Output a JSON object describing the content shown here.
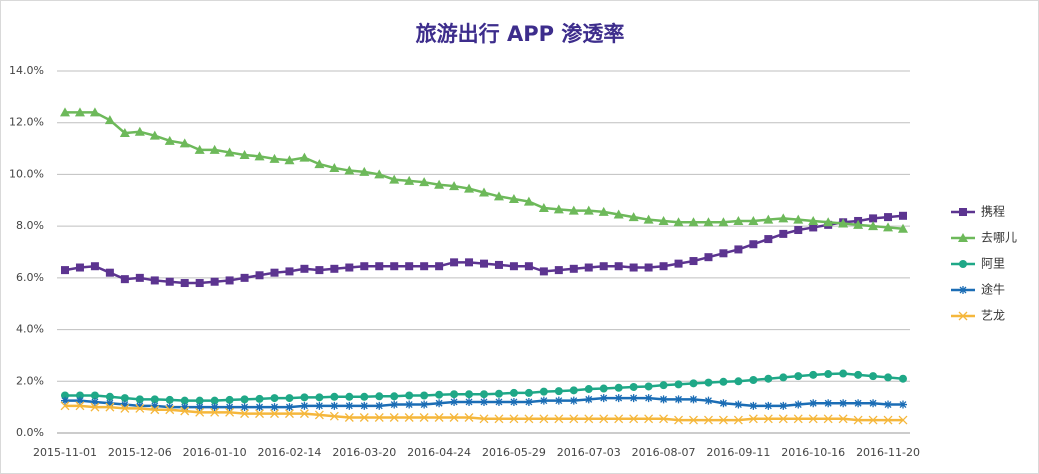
{
  "chart_data": {
    "type": "line",
    "title": "旅游出行 APP 渗透率",
    "categories": [
      "2015-11-01",
      null,
      null,
      null,
      null,
      "2015-12-06",
      null,
      null,
      null,
      null,
      "2016-01-10",
      null,
      null,
      null,
      null,
      "2016-02-14",
      null,
      null,
      null,
      null,
      "2016-03-20",
      null,
      null,
      null,
      null,
      "2016-04-24",
      null,
      null,
      null,
      null,
      "2016-05-29",
      null,
      null,
      null,
      null,
      "2016-07-03",
      null,
      null,
      null,
      null,
      "2016-08-07",
      null,
      null,
      null,
      null,
      "2016-09-11",
      null,
      null,
      null,
      null,
      "2016-10-16",
      null,
      null,
      null,
      null,
      "2016-11-20",
      null
    ],
    "ylim": [
      0,
      14
    ],
    "yticks": [
      {
        "value": 0,
        "label": "0.0%"
      },
      {
        "value": 2,
        "label": "2.0%"
      },
      {
        "value": 4,
        "label": "4.0%"
      },
      {
        "value": 6,
        "label": "6.0%"
      },
      {
        "value": 8,
        "label": "8.0%"
      },
      {
        "value": 10,
        "label": "10.0%"
      },
      {
        "value": 12,
        "label": "12.0%"
      },
      {
        "value": 14,
        "label": "14.0%"
      }
    ],
    "grid": true,
    "legend": "right",
    "series": [
      {
        "name": "携程",
        "color": "#5c3490",
        "marker": "square",
        "values": [
          6.3,
          6.4,
          6.45,
          6.2,
          5.95,
          6.0,
          5.9,
          5.85,
          5.8,
          5.8,
          5.85,
          5.9,
          6.0,
          6.1,
          6.2,
          6.25,
          6.35,
          6.3,
          6.35,
          6.4,
          6.45,
          6.45,
          6.45,
          6.45,
          6.45,
          6.45,
          6.6,
          6.6,
          6.55,
          6.5,
          6.45,
          6.45,
          6.25,
          6.3,
          6.35,
          6.4,
          6.45,
          6.45,
          6.4,
          6.4,
          6.45,
          6.55,
          6.65,
          6.8,
          6.95,
          7.1,
          7.3,
          7.5,
          7.7,
          7.85,
          7.95,
          8.05,
          8.15,
          8.2,
          8.3,
          8.35,
          8.4
        ]
      },
      {
        "name": "去哪儿",
        "color": "#6db95a",
        "marker": "triangle",
        "values": [
          12.4,
          12.4,
          12.4,
          12.1,
          11.6,
          11.65,
          11.5,
          11.3,
          11.2,
          10.95,
          10.95,
          10.85,
          10.75,
          10.7,
          10.6,
          10.55,
          10.65,
          10.4,
          10.25,
          10.15,
          10.1,
          10.0,
          9.8,
          9.75,
          9.7,
          9.6,
          9.55,
          9.45,
          9.3,
          9.15,
          9.05,
          8.95,
          8.7,
          8.65,
          8.6,
          8.6,
          8.55,
          8.45,
          8.35,
          8.25,
          8.2,
          8.15,
          8.15,
          8.15,
          8.15,
          8.2,
          8.2,
          8.25,
          8.3,
          8.25,
          8.2,
          8.15,
          8.1,
          8.05,
          8.0,
          7.95,
          7.9
        ]
      },
      {
        "name": "阿里",
        "color": "#1fa887",
        "marker": "circle",
        "values": [
          1.45,
          1.45,
          1.45,
          1.4,
          1.35,
          1.3,
          1.3,
          1.28,
          1.25,
          1.25,
          1.25,
          1.28,
          1.3,
          1.32,
          1.35,
          1.35,
          1.38,
          1.38,
          1.4,
          1.4,
          1.4,
          1.42,
          1.42,
          1.45,
          1.45,
          1.48,
          1.5,
          1.5,
          1.5,
          1.52,
          1.55,
          1.55,
          1.6,
          1.62,
          1.65,
          1.7,
          1.72,
          1.75,
          1.78,
          1.8,
          1.85,
          1.88,
          1.92,
          1.95,
          1.98,
          2.0,
          2.05,
          2.1,
          2.15,
          2.2,
          2.25,
          2.28,
          2.3,
          2.25,
          2.2,
          2.15,
          2.1
        ]
      },
      {
        "name": "途牛",
        "color": "#1b6db5",
        "marker": "star",
        "values": [
          1.25,
          1.25,
          1.2,
          1.15,
          1.1,
          1.05,
          1.05,
          1.0,
          1.0,
          1.0,
          1.0,
          1.0,
          1.0,
          1.0,
          1.0,
          1.0,
          1.05,
          1.05,
          1.05,
          1.05,
          1.05,
          1.05,
          1.1,
          1.1,
          1.1,
          1.15,
          1.2,
          1.2,
          1.2,
          1.2,
          1.2,
          1.2,
          1.25,
          1.25,
          1.25,
          1.3,
          1.35,
          1.35,
          1.35,
          1.35,
          1.3,
          1.3,
          1.3,
          1.25,
          1.15,
          1.1,
          1.05,
          1.05,
          1.05,
          1.1,
          1.15,
          1.15,
          1.15,
          1.15,
          1.15,
          1.1,
          1.1
        ]
      },
      {
        "name": "艺龙",
        "color": "#f5b73c",
        "marker": "x",
        "values": [
          1.05,
          1.05,
          1.0,
          1.0,
          0.95,
          0.95,
          0.9,
          0.9,
          0.85,
          0.8,
          0.8,
          0.8,
          0.75,
          0.75,
          0.75,
          0.75,
          0.75,
          0.7,
          0.65,
          0.6,
          0.6,
          0.6,
          0.6,
          0.6,
          0.6,
          0.6,
          0.6,
          0.6,
          0.55,
          0.55,
          0.55,
          0.55,
          0.55,
          0.55,
          0.55,
          0.55,
          0.55,
          0.55,
          0.55,
          0.55,
          0.55,
          0.5,
          0.5,
          0.5,
          0.5,
          0.5,
          0.55,
          0.55,
          0.55,
          0.55,
          0.55,
          0.55,
          0.55,
          0.5,
          0.5,
          0.5,
          0.5
        ]
      }
    ]
  }
}
